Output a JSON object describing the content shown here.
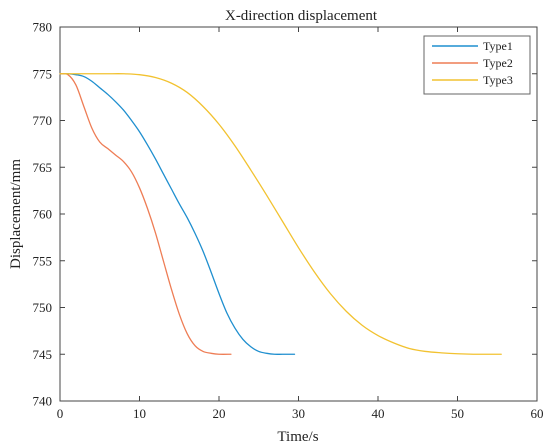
{
  "chart_data": {
    "type": "line",
    "title": "X-direction displacement",
    "xlabel": "Time/s",
    "ylabel": "Displacement/mm",
    "xlim": [
      0,
      60
    ],
    "ylim": [
      740,
      780
    ],
    "xticks": [
      "0",
      "10",
      "20",
      "30",
      "40",
      "50",
      "60"
    ],
    "yticks": [
      "740",
      "745",
      "750",
      "755",
      "760",
      "765",
      "770",
      "775",
      "780"
    ],
    "grid": false,
    "legend_position": "top-right",
    "series": [
      {
        "name": "Type1",
        "color": "#1f8fcf",
        "x": [
          0,
          1,
          2,
          3,
          4,
          5,
          6,
          7,
          8,
          9,
          10,
          11,
          12,
          13,
          14,
          15,
          16,
          17,
          18,
          19,
          20,
          21,
          22,
          23,
          24,
          25,
          26,
          27,
          28,
          29.5
        ],
        "y": [
          775,
          775,
          774.9,
          774.7,
          774.2,
          773.5,
          772.8,
          772,
          771.1,
          770,
          768.8,
          767.4,
          765.9,
          764.3,
          762.7,
          761.1,
          759.6,
          757.9,
          756,
          753.8,
          751.5,
          749.4,
          747.8,
          746.6,
          745.8,
          745.3,
          745.1,
          745,
          745,
          745
        ]
      },
      {
        "name": "Type2",
        "color": "#ee7d55",
        "x": [
          0,
          1,
          2,
          3,
          4,
          5,
          6,
          7,
          8,
          9,
          10,
          11,
          12,
          13,
          14,
          15,
          16,
          17,
          18,
          19,
          20,
          21.5
        ],
        "y": [
          775,
          774.9,
          773.8,
          771.5,
          769.2,
          767.7,
          767,
          766.3,
          765.6,
          764.5,
          762.8,
          760.6,
          758,
          755,
          752,
          749.3,
          747.2,
          745.9,
          745.3,
          745.1,
          745,
          745
        ]
      },
      {
        "name": "Type3",
        "color": "#f2c230",
        "x": [
          0,
          2,
          4,
          6,
          8,
          10,
          12,
          14,
          16,
          18,
          20,
          22,
          24,
          26,
          28,
          30,
          32,
          34,
          36,
          38,
          40,
          42,
          44,
          46,
          48,
          50,
          52,
          54,
          55.5
        ],
        "y": [
          775,
          775,
          775,
          775,
          775,
          774.9,
          774.6,
          774,
          773,
          771.5,
          769.6,
          767.3,
          764.7,
          762,
          759.2,
          756.4,
          753.8,
          751.5,
          749.6,
          748.1,
          747,
          746.2,
          745.6,
          745.3,
          745.15,
          745.05,
          745,
          745,
          745
        ]
      }
    ]
  }
}
